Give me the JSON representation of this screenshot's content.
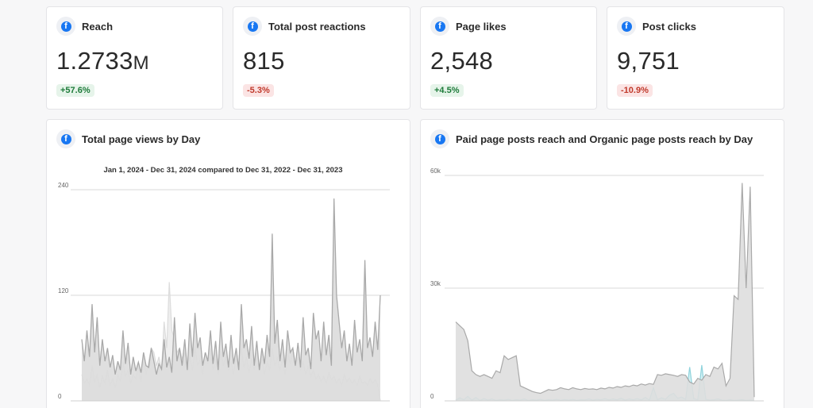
{
  "metrics": [
    {
      "title": "Reach",
      "value": "1.2733",
      "unit": "M",
      "change": "+57.6%",
      "direction": "up"
    },
    {
      "title": "Total post reactions",
      "value": "815",
      "unit": "",
      "change": "-5.3%",
      "direction": "down"
    },
    {
      "title": "Page likes",
      "value": "2,548",
      "unit": "",
      "change": "+4.5%",
      "direction": "up"
    },
    {
      "title": "Post clicks",
      "value": "9,751",
      "unit": "",
      "change": "-10.9%",
      "direction": "down"
    }
  ],
  "icon": "facebook-icon",
  "icon_glyph": "f",
  "colors": {
    "facebook_blue": "#1877f2",
    "positive": "#1e7b3a",
    "negative": "#c0392b",
    "series_gray": "#a9a9a9",
    "series_light": "#dcdcdc",
    "series_teal": "#8fd3dc"
  },
  "chart_data": [
    {
      "type": "area",
      "title": "Total page views by Day",
      "subtitle": "Jan 1, 2024 - Dec 31, 2024 compared to Dec 31, 2022 - Dec 31, 2023",
      "yticks": [
        "240",
        "120",
        "0"
      ],
      "ylim": [
        0,
        240
      ],
      "grid": true,
      "series": [
        {
          "values": [
            70,
            45,
            80,
            50,
            110,
            55,
            95,
            40,
            70,
            45,
            60,
            38,
            52,
            30,
            45,
            35,
            80,
            42,
            66,
            30,
            50,
            34,
            44,
            32,
            55,
            40,
            38,
            60,
            45,
            30,
            42,
            36,
            70,
            38,
            50,
            32,
            95,
            45,
            60,
            40,
            70,
            35,
            88,
            50,
            100,
            60,
            72,
            40,
            55,
            45,
            80,
            42,
            68,
            35,
            90,
            50,
            65,
            38,
            75,
            42,
            60,
            35,
            110,
            60,
            70,
            48,
            85,
            40,
            68,
            35,
            60,
            42,
            75,
            50,
            190,
            65,
            92,
            45,
            70,
            38,
            80,
            55,
            60,
            40,
            66,
            38,
            95,
            52,
            60,
            36,
            100,
            70,
            80,
            45,
            90,
            52,
            75,
            40,
            230,
            120,
            90,
            60,
            80,
            45,
            65,
            40,
            92,
            55,
            70,
            45,
            160,
            60,
            72,
            50,
            90,
            58,
            120
          ]
        },
        {
          "values": [
            30,
            20,
            25,
            18,
            40,
            22,
            30,
            15,
            28,
            20,
            35,
            18,
            25,
            15,
            30,
            22,
            45,
            28,
            35,
            20,
            30,
            25,
            40,
            22,
            50,
            30,
            45,
            60,
            55,
            40,
            50,
            35,
            90,
            60,
            135,
            80,
            70,
            55,
            60,
            48,
            55,
            40,
            50,
            35,
            62,
            40,
            48,
            30,
            55,
            42,
            60,
            35,
            48,
            30,
            58,
            40,
            50,
            35,
            45,
            30,
            55,
            40,
            60,
            38,
            50,
            32,
            48,
            35,
            55,
            40,
            50,
            30,
            45,
            35,
            60,
            40,
            50,
            35,
            48,
            30,
            55,
            42,
            60,
            38,
            50,
            35,
            45,
            30,
            40,
            28,
            35,
            25,
            30,
            22,
            28,
            20,
            32,
            24,
            28,
            20,
            25,
            18,
            30,
            22,
            26,
            20,
            24,
            18,
            28,
            20,
            22,
            18,
            25,
            20,
            24,
            18,
            0
          ]
        }
      ]
    },
    {
      "type": "area",
      "title": "Paid page posts reach and Organic page posts reach by Day",
      "yticks": [
        "60k",
        "30k",
        "0"
      ],
      "ylim": [
        0,
        60000
      ],
      "grid": true,
      "series": [
        {
          "values": [
            21000,
            20000,
            19000,
            16000,
            8000,
            7000,
            6500,
            7000,
            6500,
            6000,
            8000,
            7500,
            12000,
            11000,
            11500,
            12000,
            4000,
            3500,
            3000,
            2500,
            2200,
            2000,
            2500,
            3000,
            2800,
            3000,
            3500,
            3200,
            3000,
            3500,
            3200,
            3000,
            3300,
            3100,
            3200,
            3000,
            3400,
            3200,
            3600,
            3400,
            3800,
            3600,
            4000,
            3800,
            4200,
            4000,
            4500,
            4200,
            4600,
            4400,
            7000,
            6800,
            7200,
            7000,
            6800,
            6500,
            7000,
            6800,
            5000,
            4500,
            6000,
            5500,
            7000,
            6500,
            9000,
            8500,
            10000,
            4000,
            6000,
            28000,
            27000,
            58000,
            30000,
            57000,
            1000
          ]
        },
        {
          "values": [
            200,
            800,
            300,
            1200,
            200,
            900,
            100,
            600,
            200,
            500,
            100,
            300,
            200,
            400,
            100,
            300,
            200,
            500,
            100,
            300,
            200,
            400,
            100,
            300,
            200,
            400,
            150,
            350,
            200,
            400,
            150,
            300,
            250,
            500,
            200,
            400,
            300,
            600,
            250,
            500,
            300,
            700,
            200,
            500,
            300,
            600,
            250,
            900,
            200,
            3500,
            300,
            800,
            400,
            1500,
            2000,
            700,
            1000,
            400,
            9000,
            600,
            300,
            9500,
            400,
            200,
            300,
            500,
            200,
            100,
            300,
            100,
            200,
            300,
            100,
            200,
            100
          ]
        }
      ]
    }
  ]
}
